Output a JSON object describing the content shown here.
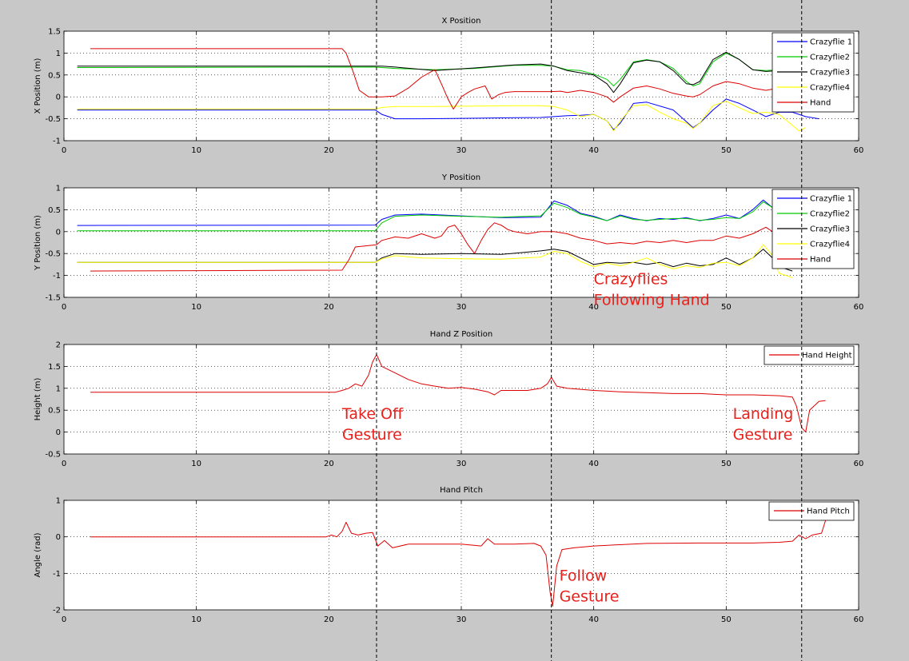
{
  "figure": {
    "background": "#c8c8c8",
    "annotation_color": "#e8211c",
    "gesture_lines_x": [
      23.6,
      36.8,
      55.7
    ]
  },
  "annotations": [
    {
      "lines": [
        "Crazyflies",
        "Following Hand"
      ],
      "panel": 1,
      "x": 40.0,
      "y": -1.2
    },
    {
      "lines": [
        "Take Off",
        "Gesture"
      ],
      "panel": 2,
      "x": 21.0,
      "y": 0.3
    },
    {
      "lines": [
        "Landing",
        "Gesture"
      ],
      "panel": 2,
      "x": 50.5,
      "y": 0.3
    },
    {
      "lines": [
        "Follow",
        "Gesture"
      ],
      "panel": 3,
      "x": 37.4,
      "y": -1.2
    }
  ],
  "chart_data": [
    {
      "type": "line",
      "title": "X Position",
      "xlabel": "",
      "ylabel": "X Position (m)",
      "xlim": [
        0,
        60
      ],
      "ylim": [
        -1,
        1.5
      ],
      "xticks": [
        0,
        10,
        20,
        30,
        40,
        50,
        60
      ],
      "yticks": [
        -1,
        -0.5,
        0,
        0.5,
        1,
        1.5
      ],
      "grid": true,
      "legend_position": "top-right",
      "series": [
        {
          "name": "Crazyflie 1",
          "color": "#0000ff",
          "x": [
            1,
            23.5,
            24,
            25,
            27,
            30,
            33,
            36,
            37,
            38,
            39,
            40,
            41,
            41.5,
            42,
            43,
            44,
            46,
            47.5,
            48,
            49,
            50,
            51,
            52,
            53,
            54,
            55,
            56,
            57
          ],
          "y": [
            -0.3,
            -0.3,
            -0.4,
            -0.5,
            -0.5,
            -0.49,
            -0.48,
            -0.47,
            -0.45,
            -0.43,
            -0.42,
            -0.4,
            -0.55,
            -0.75,
            -0.6,
            -0.15,
            -0.12,
            -0.3,
            -0.7,
            -0.6,
            -0.3,
            -0.05,
            -0.15,
            -0.3,
            -0.45,
            -0.35,
            -0.35,
            -0.45,
            -0.5
          ]
        },
        {
          "name": "Crazyflie2",
          "color": "#00cc00",
          "x": [
            1,
            23.5,
            24,
            25,
            28,
            31,
            34,
            36,
            37,
            38,
            39,
            40,
            41,
            41.5,
            42,
            43,
            44,
            45,
            46,
            47,
            47.5,
            48,
            49,
            50,
            51,
            52,
            53,
            54,
            55,
            56
          ],
          "y": [
            0.67,
            0.68,
            0.67,
            0.65,
            0.62,
            0.65,
            0.72,
            0.72,
            0.7,
            0.62,
            0.6,
            0.52,
            0.4,
            0.25,
            0.4,
            0.8,
            0.85,
            0.8,
            0.65,
            0.35,
            0.25,
            0.3,
            0.8,
            1.0,
            0.85,
            0.62,
            0.6,
            0.62,
            0.6,
            0.62
          ]
        },
        {
          "name": "Crazyflie3",
          "color": "#000000",
          "x": [
            1,
            23.5,
            24,
            25,
            28,
            31,
            34,
            36,
            37,
            38,
            39,
            40,
            41,
            41.5,
            42,
            43,
            44,
            45,
            46,
            47,
            47.5,
            48,
            49,
            50,
            51,
            52,
            53,
            54,
            55,
            56
          ],
          "y": [
            0.7,
            0.7,
            0.7,
            0.68,
            0.6,
            0.66,
            0.73,
            0.75,
            0.7,
            0.6,
            0.55,
            0.5,
            0.3,
            0.1,
            0.3,
            0.78,
            0.84,
            0.8,
            0.6,
            0.3,
            0.28,
            0.35,
            0.85,
            1.02,
            0.85,
            0.62,
            0.58,
            0.6,
            0.6,
            0.6
          ]
        },
        {
          "name": "Crazyflie4",
          "color": "#ffff00",
          "x": [
            1,
            23.5,
            24,
            25,
            28,
            31,
            34,
            36,
            37,
            38,
            39,
            40,
            41,
            41.5,
            42,
            43,
            44,
            45,
            46,
            47,
            47.5,
            48,
            49,
            50,
            51,
            52,
            53,
            54,
            55,
            55.5,
            56
          ],
          "y": [
            -0.28,
            -0.28,
            -0.24,
            -0.22,
            -0.22,
            -0.21,
            -0.2,
            -0.2,
            -0.22,
            -0.3,
            -0.45,
            -0.4,
            -0.55,
            -0.78,
            -0.55,
            -0.2,
            -0.18,
            -0.35,
            -0.5,
            -0.6,
            -0.72,
            -0.6,
            -0.2,
            -0.1,
            -0.25,
            -0.38,
            -0.35,
            -0.4,
            -0.65,
            -0.78,
            -0.7
          ]
        },
        {
          "name": "Hand",
          "color": "#dd0000",
          "x": [
            2,
            21,
            21.3,
            21.8,
            22.3,
            23,
            24,
            25,
            26,
            27,
            28,
            28.5,
            29,
            29.4,
            30,
            30.5,
            31,
            31.8,
            32.3,
            32.8,
            33.3,
            34,
            35,
            36,
            36.8,
            37.5,
            38,
            39,
            40,
            41,
            41.5,
            42,
            43,
            44,
            45,
            46,
            47,
            47.5,
            48,
            49,
            50,
            51,
            52,
            53,
            54,
            55,
            56
          ],
          "y": [
            1.1,
            1.1,
            1.0,
            0.6,
            0.15,
            0.0,
            0.0,
            0.02,
            0.2,
            0.45,
            0.62,
            0.3,
            -0.05,
            -0.28,
            0.0,
            0.1,
            0.18,
            0.25,
            -0.05,
            0.05,
            0.1,
            0.12,
            0.12,
            0.12,
            0.12,
            0.13,
            0.1,
            0.15,
            0.1,
            0.0,
            -0.12,
            0.0,
            0.2,
            0.25,
            0.18,
            0.08,
            0.02,
            0.0,
            0.05,
            0.25,
            0.35,
            0.3,
            0.2,
            0.15,
            0.2,
            0.3,
            0.25
          ]
        }
      ]
    },
    {
      "type": "line",
      "title": "Y Position",
      "xlabel": "",
      "ylabel": "Y Position (m)",
      "xlim": [
        0,
        60
      ],
      "ylim": [
        -1.5,
        1
      ],
      "xticks": [
        0,
        10,
        20,
        30,
        40,
        50,
        60
      ],
      "yticks": [
        -1.5,
        -1,
        -0.5,
        0,
        0.5,
        1
      ],
      "grid": true,
      "legend_position": "top-right",
      "series": [
        {
          "name": "Crazyflie 1",
          "color": "#0000ff",
          "x": [
            1,
            23.5,
            24,
            25,
            27,
            30,
            33,
            36,
            37,
            38,
            39,
            40,
            41,
            42,
            43,
            44,
            45,
            46,
            47,
            48,
            49,
            50,
            51,
            52,
            52.8,
            53.5,
            54,
            55
          ],
          "y": [
            0.14,
            0.15,
            0.28,
            0.38,
            0.4,
            0.36,
            0.32,
            0.33,
            0.7,
            0.6,
            0.42,
            0.35,
            0.25,
            0.38,
            0.3,
            0.25,
            0.3,
            0.28,
            0.32,
            0.25,
            0.3,
            0.38,
            0.3,
            0.5,
            0.72,
            0.55,
            0.45,
            0.4
          ]
        },
        {
          "name": "Crazyflie2",
          "color": "#00cc00",
          "x": [
            1,
            23.5,
            24,
            25,
            27,
            30,
            33,
            36,
            37,
            38,
            39,
            40,
            41,
            42,
            43,
            44,
            45,
            46,
            47,
            48,
            49,
            50,
            51,
            52,
            52.8,
            53.5,
            54,
            55
          ],
          "y": [
            0.02,
            0.02,
            0.2,
            0.35,
            0.38,
            0.35,
            0.33,
            0.36,
            0.65,
            0.55,
            0.4,
            0.33,
            0.25,
            0.36,
            0.28,
            0.26,
            0.28,
            0.3,
            0.3,
            0.26,
            0.28,
            0.32,
            0.3,
            0.45,
            0.68,
            0.55,
            0.45,
            0.42
          ]
        },
        {
          "name": "Crazyflie3",
          "color": "#000000",
          "x": [
            1,
            23.5,
            24,
            25,
            27,
            30,
            33,
            36,
            37,
            38,
            39,
            40,
            41,
            42,
            43,
            44,
            45,
            46,
            47,
            48,
            49,
            50,
            51,
            52,
            52.8,
            53.5,
            54,
            55
          ],
          "y": [
            -0.7,
            -0.7,
            -0.6,
            -0.5,
            -0.52,
            -0.5,
            -0.52,
            -0.44,
            -0.4,
            -0.45,
            -0.6,
            -0.75,
            -0.7,
            -0.72,
            -0.7,
            -0.75,
            -0.7,
            -0.8,
            -0.72,
            -0.78,
            -0.75,
            -0.6,
            -0.75,
            -0.6,
            -0.4,
            -0.6,
            -0.8,
            -0.9
          ]
        },
        {
          "name": "Crazyflie4",
          "color": "#ffff00",
          "x": [
            1,
            23.5,
            24,
            25,
            27,
            30,
            33,
            36,
            37,
            38,
            39,
            40,
            41,
            42,
            43,
            44,
            45,
            46,
            47,
            48,
            49,
            50,
            51,
            52,
            52.8,
            53.5,
            54,
            55
          ],
          "y": [
            -0.7,
            -0.7,
            -0.62,
            -0.55,
            -0.6,
            -0.62,
            -0.63,
            -0.58,
            -0.45,
            -0.5,
            -0.68,
            -0.8,
            -0.72,
            -0.78,
            -0.7,
            -0.6,
            -0.75,
            -0.85,
            -0.78,
            -0.82,
            -0.72,
            -0.7,
            -0.78,
            -0.6,
            -0.3,
            -0.55,
            -0.95,
            -1.05
          ]
        },
        {
          "name": "Hand",
          "color": "#dd0000",
          "x": [
            2,
            21,
            21.5,
            22,
            23,
            23.6,
            24,
            25,
            26,
            27,
            28,
            28.5,
            29,
            29.5,
            30,
            30.5,
            31,
            31.5,
            32,
            32.5,
            33,
            33.5,
            34,
            35,
            36,
            37,
            38,
            39,
            40,
            41,
            42,
            43,
            44,
            45,
            46,
            47,
            48,
            49,
            50,
            51,
            52,
            53,
            54,
            55,
            56
          ],
          "y": [
            -0.9,
            -0.88,
            -0.65,
            -0.35,
            -0.32,
            -0.3,
            -0.2,
            -0.12,
            -0.15,
            -0.05,
            -0.15,
            -0.1,
            0.1,
            0.15,
            -0.05,
            -0.3,
            -0.5,
            -0.2,
            0.05,
            0.2,
            0.15,
            0.05,
            0.0,
            -0.05,
            0.0,
            0.0,
            -0.05,
            -0.15,
            -0.2,
            -0.28,
            -0.25,
            -0.28,
            -0.22,
            -0.25,
            -0.2,
            -0.25,
            -0.2,
            -0.2,
            -0.1,
            -0.15,
            -0.05,
            0.1,
            -0.1,
            -0.15,
            -0.2
          ]
        }
      ]
    },
    {
      "type": "line",
      "title": "Hand Z Position",
      "xlabel": "",
      "ylabel": "Height (m)",
      "xlim": [
        0,
        60
      ],
      "ylim": [
        -0.5,
        2
      ],
      "xticks": [
        0,
        10,
        20,
        30,
        40,
        50,
        60
      ],
      "yticks": [
        -0.5,
        0,
        0.5,
        1,
        1.5,
        2
      ],
      "grid": true,
      "legend_position": "top-right",
      "series": [
        {
          "name": "Hand Height",
          "color": "#dd0000",
          "x": [
            2,
            20.5,
            21,
            21.5,
            22,
            22.5,
            23,
            23.3,
            23.6,
            24,
            25,
            26,
            27,
            28,
            29,
            30,
            31,
            32,
            32.5,
            33,
            34,
            35,
            36,
            36.5,
            36.8,
            37.2,
            38,
            40,
            42,
            44,
            46,
            48,
            50,
            52,
            54,
            55,
            55.3,
            55.7,
            56,
            56.3,
            57,
            57.5
          ],
          "y": [
            0.91,
            0.91,
            0.95,
            1.0,
            1.1,
            1.05,
            1.3,
            1.6,
            1.77,
            1.5,
            1.35,
            1.2,
            1.1,
            1.05,
            1.0,
            1.02,
            0.98,
            0.92,
            0.85,
            0.95,
            0.95,
            0.95,
            1.0,
            1.1,
            1.25,
            1.05,
            1.0,
            0.95,
            0.92,
            0.9,
            0.88,
            0.88,
            0.85,
            0.85,
            0.83,
            0.8,
            0.6,
            0.1,
            0.0,
            0.5,
            0.7,
            0.72
          ]
        }
      ]
    },
    {
      "type": "line",
      "title": "Hand Pitch",
      "xlabel": "",
      "ylabel": "Angle (rad)",
      "xlim": [
        0,
        60
      ],
      "ylim": [
        -2,
        1
      ],
      "xticks": [
        0,
        10,
        20,
        30,
        40,
        50,
        60
      ],
      "yticks": [
        -2,
        -1,
        0,
        1
      ],
      "grid": true,
      "legend_position": "top-right",
      "series": [
        {
          "name": "Hand Pitch",
          "color": "#dd0000",
          "x": [
            2,
            19.8,
            20.2,
            20.6,
            21,
            21.3,
            21.7,
            22.2,
            22.8,
            23.3,
            23.7,
            24.2,
            24.8,
            26,
            28,
            30,
            31.5,
            32,
            32.5,
            34,
            35.5,
            36,
            36.4,
            36.7,
            36.9,
            37.2,
            37.6,
            38.5,
            40,
            44,
            48,
            52,
            54,
            55,
            55.5,
            56,
            56.5,
            57.2,
            57.5
          ],
          "y": [
            0.0,
            0.0,
            0.05,
            0.0,
            0.15,
            0.4,
            0.1,
            0.05,
            0.1,
            0.12,
            -0.25,
            -0.1,
            -0.3,
            -0.2,
            -0.2,
            -0.2,
            -0.25,
            -0.05,
            -0.2,
            -0.2,
            -0.18,
            -0.25,
            -0.5,
            -1.5,
            -1.9,
            -0.8,
            -0.35,
            -0.3,
            -0.25,
            -0.18,
            -0.17,
            -0.17,
            -0.15,
            -0.12,
            0.05,
            -0.05,
            0.05,
            0.1,
            0.45
          ]
        }
      ]
    }
  ]
}
